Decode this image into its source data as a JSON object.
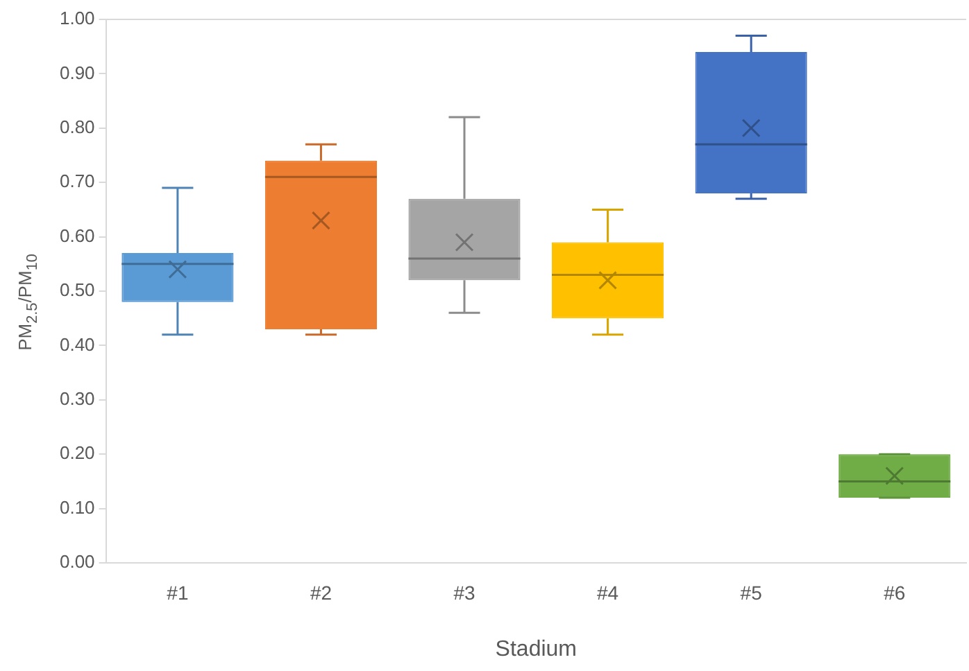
{
  "chart_data": {
    "type": "box",
    "xlabel": "Stadium",
    "ylabel": "PM$_{2.5}$/PM$_{10}$",
    "categories": [
      "#1",
      "#2",
      "#3",
      "#4",
      "#5",
      "#6"
    ],
    "colors": [
      "#5b9bd5",
      "#ed7d31",
      "#a5a5a5",
      "#ffc000",
      "#4472c4",
      "#70ad47"
    ],
    "boxes": [
      {
        "low": 0.42,
        "q1": 0.48,
        "median": 0.55,
        "q3": 0.57,
        "high": 0.69,
        "mean": 0.54
      },
      {
        "low": 0.42,
        "q1": 0.43,
        "median": 0.71,
        "q3": 0.74,
        "high": 0.77,
        "mean": 0.63
      },
      {
        "low": 0.46,
        "q1": 0.52,
        "median": 0.56,
        "q3": 0.67,
        "high": 0.82,
        "mean": 0.59
      },
      {
        "low": 0.42,
        "q1": 0.45,
        "median": 0.53,
        "q3": 0.59,
        "high": 0.65,
        "mean": 0.52
      },
      {
        "low": 0.67,
        "q1": 0.68,
        "median": 0.77,
        "q3": 0.94,
        "high": 0.97,
        "mean": 0.8
      },
      {
        "low": 0.12,
        "q1": 0.12,
        "median": 0.15,
        "q3": 0.2,
        "high": 0.2,
        "mean": 0.16
      }
    ],
    "ylim": [
      0,
      1
    ],
    "yticks": [
      {
        "value": 0,
        "label": "0.00"
      },
      {
        "value": 0.1,
        "label": "0.10"
      },
      {
        "value": 0.2,
        "label": "0.20"
      },
      {
        "value": 0.3,
        "label": "0.30"
      },
      {
        "value": 0.4,
        "label": "0.40"
      },
      {
        "value": 0.5,
        "label": "0.50"
      },
      {
        "value": 0.6,
        "label": "0.60"
      },
      {
        "value": 0.7,
        "label": "0.70"
      },
      {
        "value": 0.8,
        "label": "0.80"
      },
      {
        "value": 0.9,
        "label": "0.90"
      },
      {
        "value": 1,
        "label": "1.00"
      }
    ],
    "grid": false,
    "legend": false
  }
}
